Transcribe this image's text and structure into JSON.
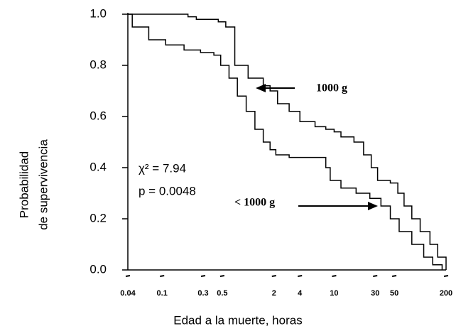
{
  "chart_data": {
    "type": "step",
    "x_scale": "log",
    "ylabel": [
      "Probabilidad",
      "de supervivencia"
    ],
    "xlabel": "Edad a la muerte, horas",
    "annotations": [
      "χ² = 7.94",
      "p = 0.0048"
    ],
    "xlim": [
      0.04,
      200
    ],
    "ylim": [
      0,
      1
    ],
    "xticks": [
      0.04,
      0.1,
      0.3,
      0.5,
      2,
      4,
      10,
      30,
      50,
      200
    ],
    "yticks": [
      {
        "value": 0,
        "label": "0.0"
      },
      0.2,
      0.4,
      0.6,
      0.8,
      {
        "value": 1,
        "label": "1.0"
      }
    ],
    "series": [
      {
        "name": "1000 g",
        "color": "#000000",
        "x": [
          0.04,
          0.1,
          0.2,
          0.25,
          0.45,
          0.55,
          0.7,
          1,
          1.5,
          1.8,
          2.2,
          3,
          4,
          6,
          8,
          10,
          12,
          17,
          22,
          27,
          32,
          45,
          55,
          65,
          80,
          100,
          130,
          160,
          200
        ],
        "values": [
          1.0,
          1.0,
          0.99,
          0.98,
          0.97,
          0.95,
          0.8,
          0.75,
          0.72,
          0.7,
          0.65,
          0.62,
          0.58,
          0.56,
          0.55,
          0.54,
          0.52,
          0.5,
          0.45,
          0.4,
          0.35,
          0.34,
          0.3,
          0.25,
          0.2,
          0.15,
          0.1,
          0.05,
          0.0
        ]
      },
      {
        "name": "< 1000 g",
        "color": "#000000",
        "x": [
          0.04,
          0.045,
          0.07,
          0.11,
          0.18,
          0.28,
          0.4,
          0.48,
          0.6,
          0.75,
          0.95,
          1.2,
          1.5,
          1.8,
          2.1,
          3,
          6.5,
          8,
          9,
          12,
          18,
          26,
          35,
          45,
          57,
          80,
          110,
          140,
          180
        ],
        "values": [
          1.0,
          0.95,
          0.9,
          0.88,
          0.86,
          0.85,
          0.84,
          0.8,
          0.75,
          0.68,
          0.62,
          0.55,
          0.5,
          0.47,
          0.45,
          0.44,
          0.44,
          0.4,
          0.35,
          0.32,
          0.3,
          0.28,
          0.25,
          0.2,
          0.15,
          0.1,
          0.05,
          0.02,
          0.0
        ]
      }
    ]
  }
}
